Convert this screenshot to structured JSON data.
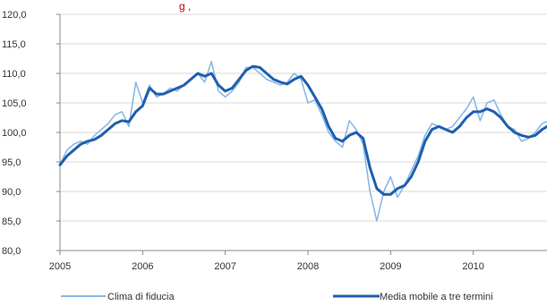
{
  "chart_data": {
    "type": "line",
    "title": "g         ,",
    "ylim": [
      80,
      120
    ],
    "y_ticks": [
      "120,0",
      "115,0",
      "110,0",
      "105,0",
      "100,0",
      "95,0",
      "90,0",
      "85,0",
      "80,0"
    ],
    "y_tick_values": [
      120,
      115,
      110,
      105,
      100,
      95,
      90,
      85,
      80
    ],
    "x_ticks": [
      "2005",
      "2006",
      "2007",
      "2008",
      "2009",
      "2010"
    ],
    "x_tick_values": [
      2005,
      2006,
      2007,
      2008,
      2009,
      2010
    ],
    "xlim": [
      2005,
      2011
    ],
    "grid": true,
    "legend_position": "bottom",
    "series": [
      {
        "name": "Clima di fiducia",
        "color": "#8ab8e6",
        "x": [
          2005.0,
          2005.083,
          2005.167,
          2005.25,
          2005.333,
          2005.417,
          2005.5,
          2005.583,
          2005.667,
          2005.75,
          2005.833,
          2005.917,
          2006.0,
          2006.083,
          2006.167,
          2006.25,
          2006.333,
          2006.417,
          2006.5,
          2006.583,
          2006.667,
          2006.75,
          2006.833,
          2006.917,
          2007.0,
          2007.083,
          2007.167,
          2007.25,
          2007.333,
          2007.417,
          2007.5,
          2007.583,
          2007.667,
          2007.75,
          2007.833,
          2007.917,
          2008.0,
          2008.083,
          2008.167,
          2008.25,
          2008.333,
          2008.417,
          2008.5,
          2008.583,
          2008.667,
          2008.75,
          2008.833,
          2008.917,
          2009.0,
          2009.083,
          2009.167,
          2009.25,
          2009.333,
          2009.417,
          2009.5,
          2009.583,
          2009.667,
          2009.75,
          2009.833,
          2009.917,
          2010.0,
          2010.083,
          2010.167,
          2010.25,
          2010.333,
          2010.417,
          2010.5,
          2010.583,
          2010.667,
          2010.75,
          2010.833,
          2010.917
        ],
        "values": [
          94.5,
          97.0,
          98.0,
          98.5,
          98.0,
          99.5,
          100.5,
          101.5,
          103.0,
          103.5,
          101.0,
          108.5,
          105.0,
          108.0,
          106.0,
          106.5,
          107.5,
          107.0,
          108.0,
          109.0,
          110.0,
          108.5,
          112.0,
          107.0,
          106.0,
          107.0,
          108.5,
          111.0,
          111.0,
          110.0,
          109.0,
          108.5,
          108.0,
          108.5,
          110.0,
          109.0,
          105.0,
          105.5,
          103.0,
          100.0,
          98.5,
          97.5,
          102.0,
          100.5,
          98.0,
          90.0,
          85.0,
          90.0,
          92.5,
          89.0,
          91.0,
          93.5,
          96.0,
          99.5,
          101.5,
          101.0,
          100.5,
          101.0,
          102.5,
          104.0,
          106.0,
          102.0,
          105.0,
          105.5,
          103.0,
          101.0,
          100.5,
          98.5,
          99.0,
          100.0,
          101.5,
          102.0
        ]
      },
      {
        "name": "Media mobile a tre termini",
        "color": "#1f5fae",
        "x": [
          2005.0,
          2005.083,
          2005.167,
          2005.25,
          2005.333,
          2005.417,
          2005.5,
          2005.583,
          2005.667,
          2005.75,
          2005.833,
          2005.917,
          2006.0,
          2006.083,
          2006.167,
          2006.25,
          2006.333,
          2006.417,
          2006.5,
          2006.583,
          2006.667,
          2006.75,
          2006.833,
          2006.917,
          2007.0,
          2007.083,
          2007.167,
          2007.25,
          2007.333,
          2007.417,
          2007.5,
          2007.583,
          2007.667,
          2007.75,
          2007.833,
          2007.917,
          2008.0,
          2008.083,
          2008.167,
          2008.25,
          2008.333,
          2008.417,
          2008.5,
          2008.583,
          2008.667,
          2008.75,
          2008.833,
          2008.917,
          2009.0,
          2009.083,
          2009.167,
          2009.25,
          2009.333,
          2009.417,
          2009.5,
          2009.583,
          2009.667,
          2009.75,
          2009.833,
          2009.917,
          2010.0,
          2010.083,
          2010.167,
          2010.25,
          2010.333,
          2010.417,
          2010.5,
          2010.583,
          2010.667,
          2010.75,
          2010.833,
          2010.917
        ],
        "values": [
          94.5,
          96.0,
          97.0,
          98.0,
          98.5,
          98.8,
          99.5,
          100.5,
          101.5,
          102.0,
          101.8,
          103.5,
          104.5,
          107.5,
          106.5,
          106.5,
          107.0,
          107.5,
          108.0,
          109.0,
          110.0,
          109.5,
          110.0,
          108.0,
          107.0,
          107.5,
          109.0,
          110.5,
          111.2,
          111.0,
          110.0,
          109.0,
          108.5,
          108.2,
          109.0,
          109.5,
          108.0,
          106.0,
          104.0,
          101.0,
          99.0,
          98.5,
          99.5,
          100.0,
          99.0,
          94.0,
          90.5,
          89.5,
          89.5,
          90.5,
          91.0,
          92.5,
          95.0,
          98.5,
          100.5,
          101.0,
          100.5,
          100.0,
          101.0,
          102.5,
          103.5,
          103.5,
          104.0,
          103.5,
          102.5,
          101.0,
          100.0,
          99.5,
          99.2,
          99.5,
          100.5,
          101.2
        ]
      }
    ]
  }
}
